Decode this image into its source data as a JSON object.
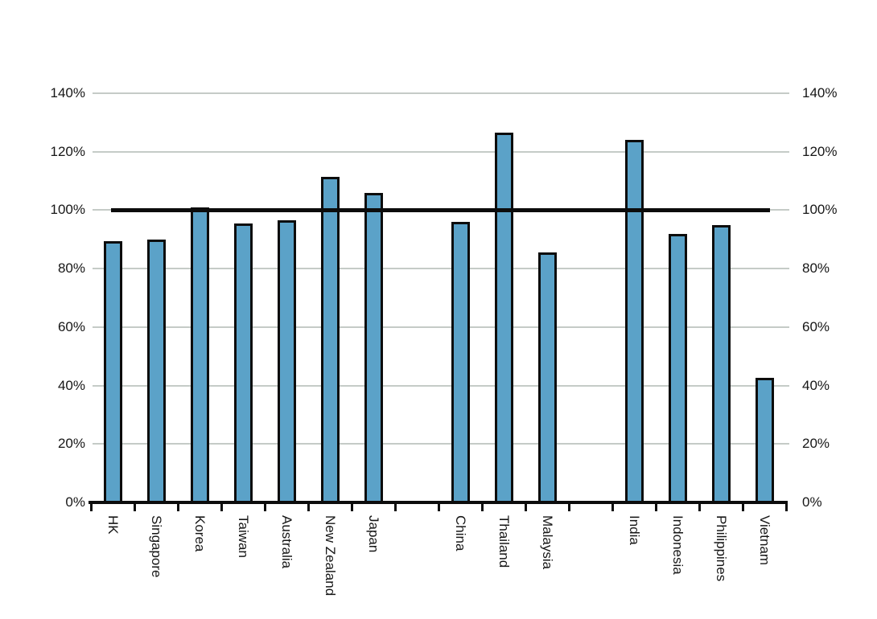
{
  "chart_data": {
    "type": "bar",
    "categories": [
      "HK",
      "Singapore",
      "Korea",
      "Taiwan",
      "Australia",
      "New Zealand",
      "Japan",
      "",
      "China",
      "Thailand",
      "Malaysia",
      "",
      "India",
      "Indonesia",
      "Philippines",
      "Vietnam"
    ],
    "values": [
      89.5,
      90,
      101,
      95.5,
      96.5,
      111.5,
      106,
      null,
      96,
      126.5,
      85.5,
      null,
      124,
      92,
      95,
      42.5
    ],
    "y_axis": {
      "min": 0,
      "max": 140,
      "step": 20,
      "unit": "%",
      "sides": [
        "left",
        "right"
      ]
    },
    "y_ticks": [
      "0%",
      "20%",
      "40%",
      "60%",
      "80%",
      "100%",
      "120%",
      "140%"
    ],
    "reference_line": {
      "value": 100
    },
    "grid": true,
    "legend": false,
    "colors": {
      "bar_fill": "#5ba2c8",
      "bar_border": "#0c0c0c",
      "gridline": "#c5cbc7",
      "axis": "#0c0c0c",
      "reference_line": "#0c0c0c",
      "text": "#161616",
      "background": "#ffffff"
    }
  }
}
